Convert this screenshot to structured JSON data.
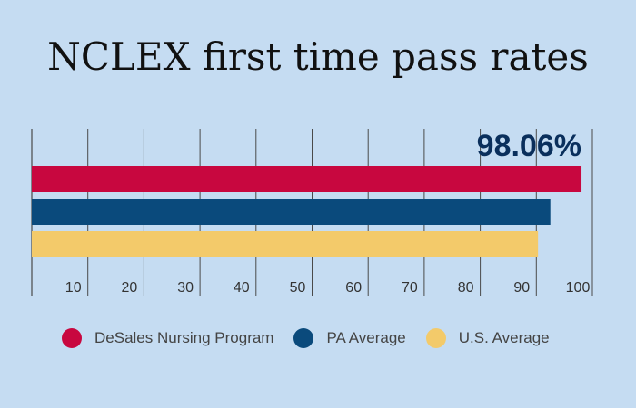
{
  "colors": {
    "background": "#c5dcf2",
    "desales": "#c8073f",
    "pa": "#0a4a7c",
    "us": "#f3ca6a",
    "callout": "#0a2f5c",
    "grid": "#4a4a4a"
  },
  "chart_data": {
    "type": "bar",
    "orientation": "horizontal",
    "title": "NCLEX first time pass rates",
    "xlim": [
      0,
      100
    ],
    "x_ticks": [
      10,
      20,
      30,
      40,
      50,
      60,
      70,
      80,
      90,
      100
    ],
    "series": [
      {
        "name": "DeSales Nursing Program",
        "value": 98.06,
        "color": "#c8073f"
      },
      {
        "name": "PA Average",
        "value": 92.5,
        "color": "#0a4a7c"
      },
      {
        "name": "U.S. Average",
        "value": 90.3,
        "color": "#f3ca6a"
      }
    ],
    "callout": "98.06%",
    "legend_position": "bottom"
  }
}
